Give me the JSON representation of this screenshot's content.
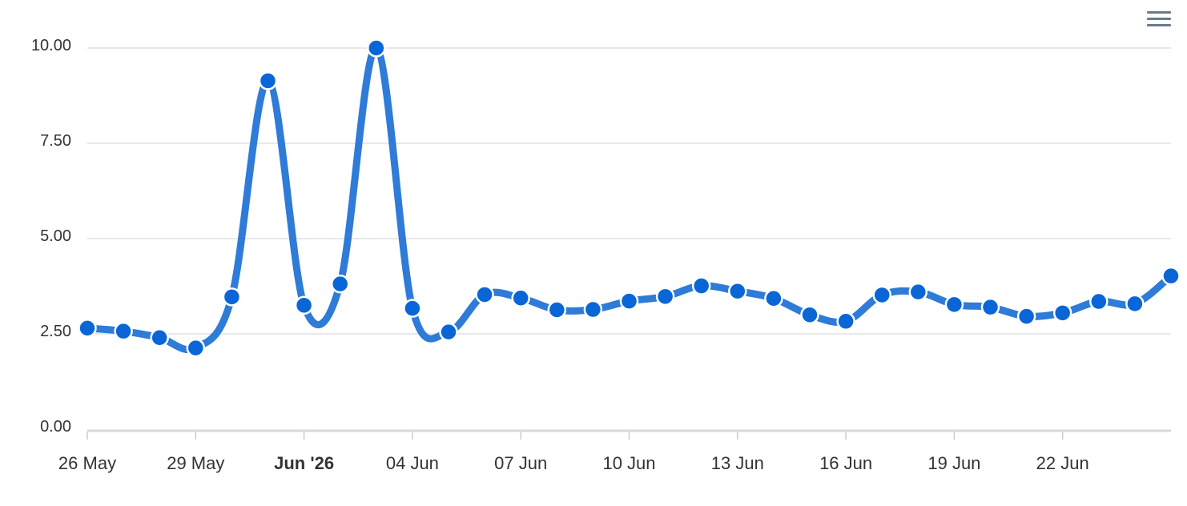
{
  "toolbar": {
    "menu_icon": "hamburger-menu-icon"
  },
  "colors": {
    "line": "#2E7BD8",
    "marker": "#0A66D6",
    "marker_outline": "#ffffff",
    "grid": "#e0e0e0",
    "axis": "#d9d9d9",
    "menu_icon": "#6b7b8c"
  },
  "chart_data": {
    "type": "line",
    "title": "",
    "xlabel": "",
    "ylabel": "",
    "ylim": [
      0,
      10
    ],
    "grid": true,
    "y_ticks": [
      "0.00",
      "2.50",
      "5.00",
      "7.50",
      "10.00"
    ],
    "x_ticks": [
      {
        "date": "2026-05-26",
        "label": "26 May",
        "bold": false
      },
      {
        "date": "2026-05-29",
        "label": "29 May",
        "bold": false
      },
      {
        "date": "2026-06-01",
        "label": "Jun '26",
        "bold": true
      },
      {
        "date": "2026-06-04",
        "label": "04 Jun",
        "bold": false
      },
      {
        "date": "2026-06-07",
        "label": "07 Jun",
        "bold": false
      },
      {
        "date": "2026-06-10",
        "label": "10 Jun",
        "bold": false
      },
      {
        "date": "2026-06-13",
        "label": "13 Jun",
        "bold": false
      },
      {
        "date": "2026-06-16",
        "label": "16 Jun",
        "bold": false
      },
      {
        "date": "2026-06-19",
        "label": "19 Jun",
        "bold": false
      },
      {
        "date": "2026-06-22",
        "label": "22 Jun",
        "bold": false
      }
    ],
    "series": [
      {
        "x": [
          "2026-05-26",
          "2026-05-27",
          "2026-05-28",
          "2026-05-29",
          "2026-05-30",
          "2026-05-31",
          "2026-06-01",
          "2026-06-02",
          "2026-06-03",
          "2026-06-04",
          "2026-06-05",
          "2026-06-06",
          "2026-06-07",
          "2026-06-08",
          "2026-06-09",
          "2026-06-10",
          "2026-06-11",
          "2026-06-12",
          "2026-06-13",
          "2026-06-14",
          "2026-06-15",
          "2026-06-16",
          "2026-06-17",
          "2026-06-18",
          "2026-06-19",
          "2026-06-20",
          "2026-06-21",
          "2026-06-22",
          "2026-06-23",
          "2026-06-24",
          "2026-06-25"
        ],
        "values": [
          2.65,
          2.57,
          2.4,
          2.13,
          3.47,
          9.14,
          3.25,
          3.81,
          10.0,
          3.17,
          2.55,
          3.53,
          3.44,
          3.13,
          3.14,
          3.36,
          3.48,
          3.76,
          3.62,
          3.43,
          3.0,
          2.83,
          3.52,
          3.6,
          3.27,
          3.2,
          2.96,
          3.05,
          3.35,
          3.29,
          4.02
        ]
      }
    ]
  }
}
